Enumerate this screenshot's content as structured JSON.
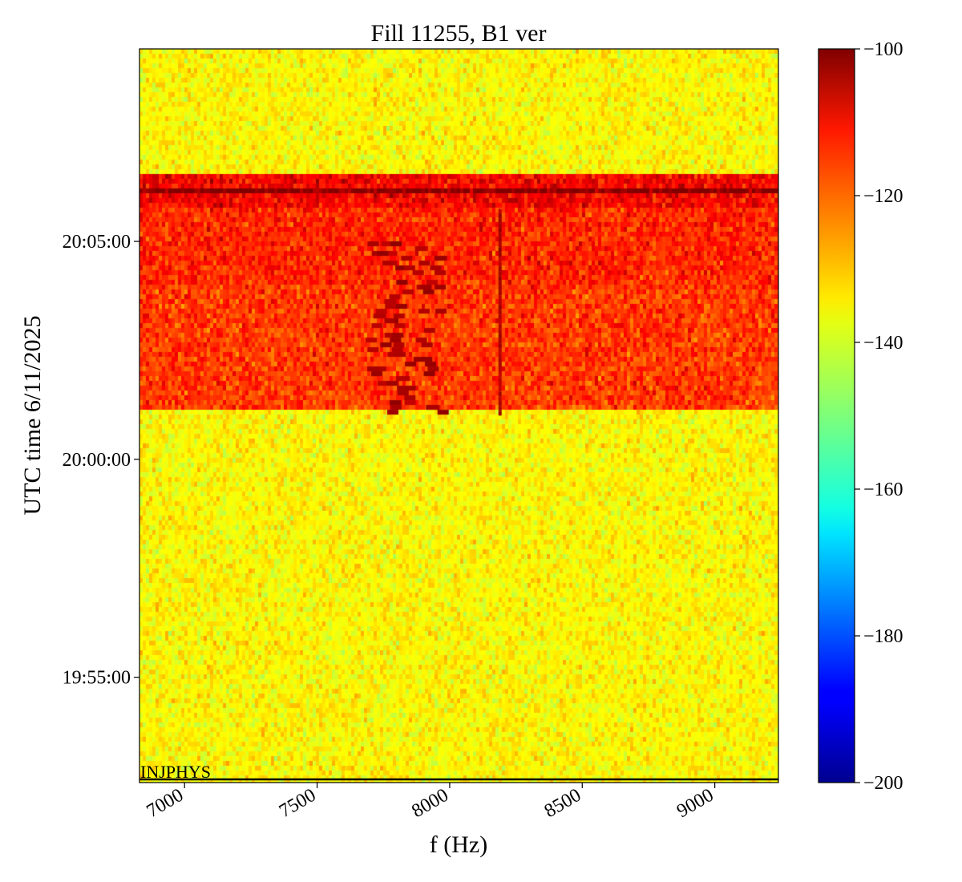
{
  "chart_data": {
    "type": "heatmap",
    "title": "Fill 11255, B1 ver",
    "xlabel": "f (Hz)",
    "ylabel": "UTC time 6/11/2025",
    "xlim": [
      6830,
      9240
    ],
    "x_ticks": [
      {
        "value": 7000,
        "label": "7000"
      },
      {
        "value": 7500,
        "label": "7500"
      },
      {
        "value": 8000,
        "label": "8000"
      },
      {
        "value": 8500,
        "label": "8500"
      },
      {
        "value": 9000,
        "label": "9000"
      }
    ],
    "y_ticks": [
      {
        "label": "19:55:00"
      },
      {
        "label": "20:00:00"
      },
      {
        "label": "20:05:00"
      }
    ],
    "time_range_minutes": {
      "start": "19:52:35",
      "end": "20:09:25"
    },
    "colormap": "jet",
    "colorbar": {
      "vmin": -200,
      "vmax": -100,
      "ticks": [
        -100,
        -120,
        -140,
        -160,
        -180,
        -200
      ],
      "tick_labels": [
        "−100",
        "−120",
        "−140",
        "−160",
        "−180",
        "−200"
      ]
    },
    "regions": [
      {
        "from": "19:52:35",
        "to": "20:01:05",
        "level_dB": -137,
        "description_level": "baseline"
      },
      {
        "from": "20:01:05",
        "to": "20:04:00",
        "level_dB": -118
      },
      {
        "from": "20:04:00",
        "to": "20:05:45",
        "level_dB": -116
      },
      {
        "from": "20:05:45",
        "to": "20:06:30",
        "level_dB": -112
      },
      {
        "from": "20:06:05",
        "to": "20:06:15",
        "level_dB": -100
      },
      {
        "from": "20:06:30",
        "to": "20:09:25",
        "level_dB": -137
      }
    ],
    "features": [
      {
        "type": "vertical_line",
        "x": 8190,
        "from": "20:01:05",
        "to": "20:05:45",
        "level_dB": -104
      },
      {
        "type": "dark_blobs",
        "x_range": [
          7680,
          7960
        ],
        "from": "20:01:05",
        "to": "20:05:00",
        "level_dB": -104
      }
    ],
    "annotations": [
      {
        "text": "INJPHYS",
        "at": "20:09:25 (bottom of plot)",
        "line": "horizontal black line"
      }
    ]
  }
}
